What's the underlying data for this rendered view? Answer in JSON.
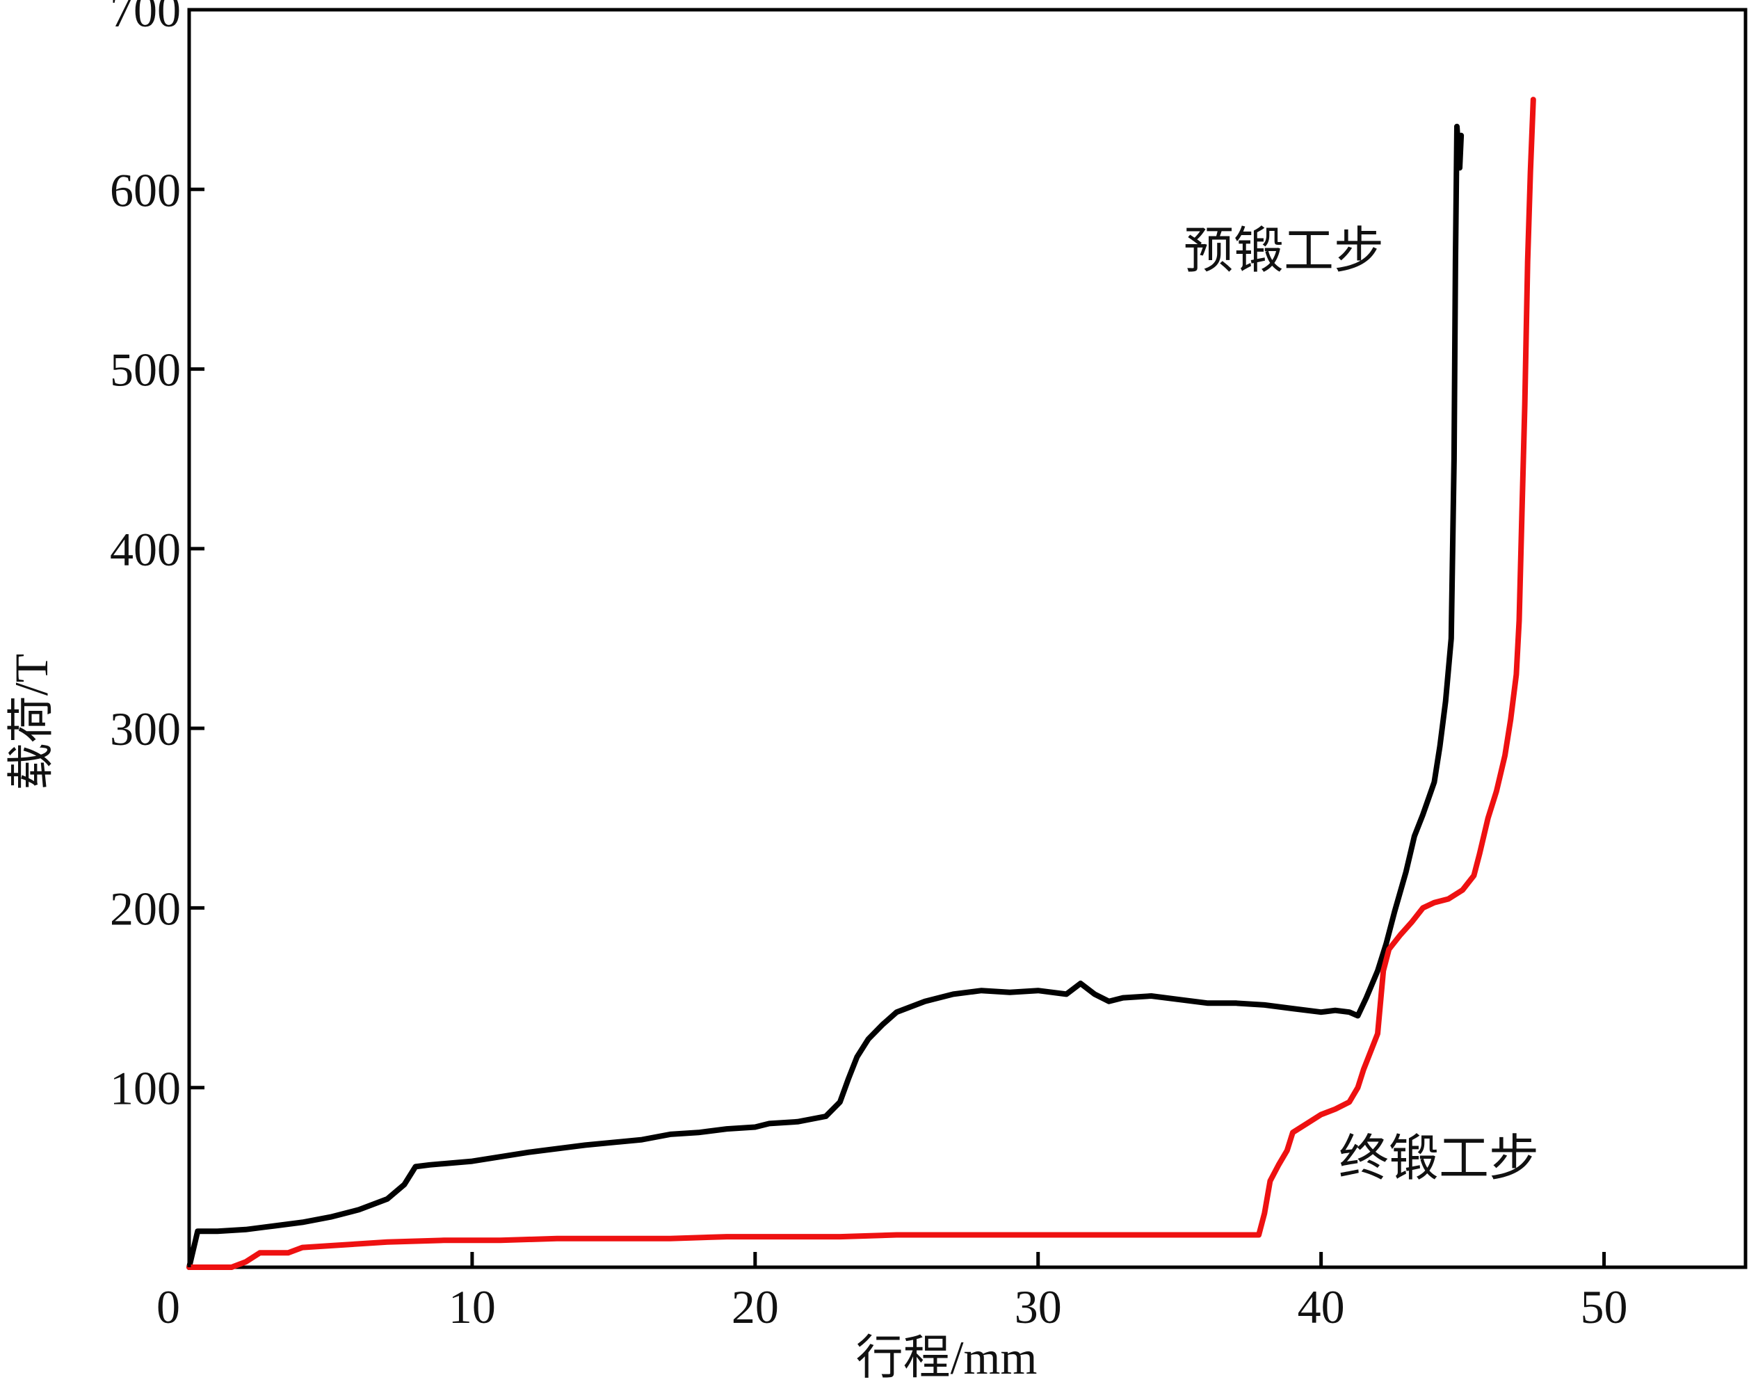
{
  "chart_data": {
    "type": "line",
    "title": "",
    "xlabel": "行程/mm",
    "ylabel": "载荷/T",
    "xlim": [
      0,
      55
    ],
    "ylim": [
      0,
      700
    ],
    "x_ticks": [
      0,
      10,
      20,
      30,
      40,
      50
    ],
    "y_ticks": [
      0,
      100,
      200,
      300,
      400,
      500,
      600,
      700
    ],
    "grid": false,
    "series": [
      {
        "name": "预锻工步",
        "color": "#000000",
        "points": [
          [
            0,
            0
          ],
          [
            0.3,
            20
          ],
          [
            1,
            20
          ],
          [
            2,
            21
          ],
          [
            3,
            23
          ],
          [
            4,
            25
          ],
          [
            5,
            28
          ],
          [
            6,
            32
          ],
          [
            7,
            38
          ],
          [
            7.6,
            46
          ],
          [
            8,
            56
          ],
          [
            8.5,
            57
          ],
          [
            10,
            59
          ],
          [
            12,
            64
          ],
          [
            14,
            68
          ],
          [
            16,
            71
          ],
          [
            17,
            74
          ],
          [
            18,
            75
          ],
          [
            19,
            77
          ],
          [
            20,
            78
          ],
          [
            20.5,
            80
          ],
          [
            21.5,
            81
          ],
          [
            22.5,
            84
          ],
          [
            23,
            92
          ],
          [
            23.3,
            105
          ],
          [
            23.6,
            117
          ],
          [
            24,
            127
          ],
          [
            24.5,
            135
          ],
          [
            25,
            142
          ],
          [
            26,
            148
          ],
          [
            27,
            152
          ],
          [
            28,
            154
          ],
          [
            29,
            153
          ],
          [
            30,
            154
          ],
          [
            31,
            152
          ],
          [
            31.5,
            158
          ],
          [
            32,
            152
          ],
          [
            32.5,
            148
          ],
          [
            33,
            150
          ],
          [
            34,
            151
          ],
          [
            35,
            149
          ],
          [
            36,
            147
          ],
          [
            37,
            147
          ],
          [
            38,
            146
          ],
          [
            39,
            144
          ],
          [
            40,
            142
          ],
          [
            40.5,
            143
          ],
          [
            41,
            142
          ],
          [
            41.3,
            140
          ],
          [
            41.6,
            150
          ],
          [
            42,
            165
          ],
          [
            42.3,
            180
          ],
          [
            42.6,
            198
          ],
          [
            43,
            220
          ],
          [
            43.3,
            240
          ],
          [
            43.6,
            252
          ],
          [
            44,
            270
          ],
          [
            44.2,
            290
          ],
          [
            44.4,
            315
          ],
          [
            44.6,
            350
          ],
          [
            44.7,
            450
          ],
          [
            44.75,
            560
          ],
          [
            44.8,
            635
          ],
          [
            44.9,
            612
          ],
          [
            44.95,
            630
          ]
        ]
      },
      {
        "name": "终锻工步",
        "color": "#ee1111",
        "points": [
          [
            0,
            0
          ],
          [
            1.5,
            0
          ],
          [
            2,
            3
          ],
          [
            2.5,
            8
          ],
          [
            3.5,
            8
          ],
          [
            4,
            11
          ],
          [
            5,
            12
          ],
          [
            7,
            14
          ],
          [
            9,
            15
          ],
          [
            11,
            15
          ],
          [
            13,
            16
          ],
          [
            15,
            16
          ],
          [
            17,
            16
          ],
          [
            19,
            17
          ],
          [
            21,
            17
          ],
          [
            23,
            17
          ],
          [
            25,
            18
          ],
          [
            27,
            18
          ],
          [
            29,
            18
          ],
          [
            31,
            18
          ],
          [
            33,
            18
          ],
          [
            35,
            18
          ],
          [
            37,
            18
          ],
          [
            37.8,
            18
          ],
          [
            38,
            30
          ],
          [
            38.2,
            48
          ],
          [
            38.5,
            57
          ],
          [
            38.8,
            65
          ],
          [
            39,
            75
          ],
          [
            39.5,
            80
          ],
          [
            40,
            85
          ],
          [
            40.5,
            88
          ],
          [
            41,
            92
          ],
          [
            41.3,
            100
          ],
          [
            41.5,
            110
          ],
          [
            41.8,
            122
          ],
          [
            42,
            130
          ],
          [
            42.2,
            165
          ],
          [
            42.4,
            177
          ],
          [
            42.8,
            185
          ],
          [
            43.2,
            192
          ],
          [
            43.6,
            200
          ],
          [
            44,
            203
          ],
          [
            44.5,
            205
          ],
          [
            45,
            210
          ],
          [
            45.4,
            218
          ],
          [
            45.6,
            230
          ],
          [
            45.9,
            250
          ],
          [
            46.2,
            265
          ],
          [
            46.5,
            285
          ],
          [
            46.7,
            305
          ],
          [
            46.9,
            330
          ],
          [
            47,
            360
          ],
          [
            47.1,
            420
          ],
          [
            47.2,
            480
          ],
          [
            47.3,
            560
          ],
          [
            47.4,
            610
          ],
          [
            47.5,
            650
          ]
        ]
      }
    ],
    "annotations": [
      {
        "text": "预锻工步",
        "series": 0
      },
      {
        "text": "终锻工步",
        "series": 1
      }
    ]
  }
}
